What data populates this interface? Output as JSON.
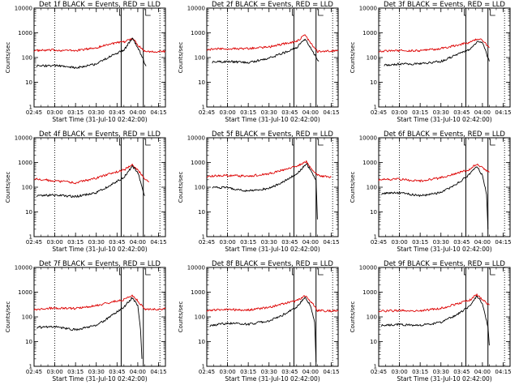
{
  "chart_data": {
    "type": "line",
    "layout": "3x3 grid",
    "x_ticklabels": [
      "02:45",
      "03:00",
      "03:15",
      "03:30",
      "03:45",
      "04:00",
      "04:15"
    ],
    "x_range": [
      "02:45",
      "04:20"
    ],
    "x_label": "Start Time (31-Jul-10 02:42:00)",
    "y_scale": "log",
    "y_range": [
      1,
      10000
    ],
    "y_ticklabels": [
      "1",
      "10",
      "100",
      "1000",
      "10000"
    ],
    "y_label": "Counts/sec",
    "series_colors": {
      "events": "#000000",
      "lld": "#dd0000"
    },
    "annotation_lines": [
      {
        "time": "03:00",
        "style": "dotted"
      },
      {
        "time": "03:48",
        "style": "solid"
      },
      {
        "time": "04:04",
        "style": "solid"
      },
      {
        "time": "04:16",
        "style": "dotted"
      }
    ],
    "panels": [
      {
        "title": "Det 1f BLACK = Events, RED = LLD",
        "series": [
          {
            "color": "red",
            "x": [
              "02:45",
              "03:00",
              "03:15",
              "03:30",
              "03:40",
              "03:50",
              "03:56",
              "04:00",
              "04:05",
              "04:20"
            ],
            "y": [
              190,
              200,
              190,
              250,
              360,
              420,
              620,
              330,
              180,
              175
            ]
          },
          {
            "color": "black",
            "x": [
              "02:47",
              "03:00",
              "03:15",
              "03:30",
              "03:40",
              "03:50",
              "03:56",
              "04:00",
              "04:06"
            ],
            "y": [
              45,
              48,
              38,
              55,
              110,
              200,
              600,
              260,
              45
            ]
          }
        ]
      },
      {
        "title": "Det 2f BLACK = Events, RED = LLD",
        "series": [
          {
            "color": "red",
            "x": [
              "02:45",
              "03:00",
              "03:15",
              "03:30",
              "03:40",
              "03:50",
              "03:56",
              "04:00",
              "04:05",
              "04:20"
            ],
            "y": [
              210,
              230,
              230,
              270,
              350,
              450,
              800,
              400,
              180,
              190
            ]
          },
          {
            "color": "black",
            "x": [
              "02:49",
              "03:00",
              "03:15",
              "03:30",
              "03:40",
              "03:50",
              "03:56",
              "04:00",
              "04:06"
            ],
            "y": [
              65,
              70,
              62,
              95,
              150,
              250,
              580,
              250,
              70
            ]
          }
        ]
      },
      {
        "title": "Det 3f BLACK = Events, RED = LLD",
        "series": [
          {
            "color": "red",
            "x": [
              "02:45",
              "03:00",
              "03:15",
              "03:30",
              "03:40",
              "03:50",
              "03:57",
              "04:00",
              "04:05"
            ],
            "y": [
              180,
              190,
              190,
              230,
              300,
              400,
              600,
              500,
              250
            ]
          },
          {
            "color": "black",
            "x": [
              "02:49",
              "03:00",
              "03:15",
              "03:30",
              "03:40",
              "03:50",
              "03:57",
              "04:00",
              "04:05"
            ],
            "y": [
              50,
              55,
              55,
              70,
              120,
              200,
              480,
              400,
              70
            ]
          }
        ]
      },
      {
        "title": "Det 4f BLACK = Events, RED = LLD",
        "series": [
          {
            "color": "red",
            "x": [
              "02:45",
              "03:00",
              "03:15",
              "03:30",
              "03:40",
              "03:50",
              "03:56",
              "04:00",
              "04:05",
              "04:08"
            ],
            "y": [
              220,
              180,
              150,
              230,
              360,
              500,
              800,
              500,
              220,
              160
            ]
          },
          {
            "color": "black",
            "x": [
              "02:47",
              "03:00",
              "03:15",
              "03:30",
              "03:40",
              "03:50",
              "03:56",
              "04:00",
              "04:05"
            ],
            "y": [
              45,
              48,
              42,
              60,
              120,
              250,
              700,
              400,
              45
            ]
          }
        ]
      },
      {
        "title": "Det 5f BLACK = Events, RED = LLD",
        "series": [
          {
            "color": "red",
            "x": [
              "02:45",
              "03:00",
              "03:15",
              "03:30",
              "03:40",
              "03:50",
              "03:57",
              "04:00",
              "04:05",
              "04:15"
            ],
            "y": [
              280,
              300,
              280,
              350,
              500,
              700,
              1100,
              600,
              300,
              260
            ]
          },
          {
            "color": "black",
            "x": [
              "02:49",
              "03:00",
              "03:15",
              "03:30",
              "03:40",
              "03:50",
              "03:57",
              "04:00",
              "04:02",
              "04:04",
              "04:05"
            ],
            "y": [
              100,
              95,
              70,
              90,
              160,
              350,
              900,
              500,
              300,
              200,
              5
            ]
          }
        ]
      },
      {
        "title": "Det 6f BLACK = Events, RED = LLD",
        "series": [
          {
            "color": "red",
            "x": [
              "02:45",
              "03:00",
              "03:15",
              "03:30",
              "03:40",
              "03:50",
              "03:56",
              "04:00",
              "04:05"
            ],
            "y": [
              200,
              210,
              180,
              240,
              350,
              500,
              900,
              600,
              400
            ]
          },
          {
            "color": "black",
            "x": [
              "02:47",
              "03:00",
              "03:15",
              "03:30",
              "03:40",
              "03:50",
              "03:56",
              "04:00",
              "04:03",
              "04:04"
            ],
            "y": [
              55,
              60,
              45,
              60,
              120,
              300,
              700,
              300,
              50,
              2
            ]
          }
        ]
      },
      {
        "title": "Det 7f BLACK = Events, RED = LLD",
        "series": [
          {
            "color": "red",
            "x": [
              "02:45",
              "03:00",
              "03:15",
              "03:30",
              "03:40",
              "03:50",
              "03:56",
              "04:00",
              "04:05",
              "04:20"
            ],
            "y": [
              200,
              230,
              220,
              280,
              380,
              500,
              750,
              450,
              200,
              210
            ]
          },
          {
            "color": "black",
            "x": [
              "02:47",
              "03:00",
              "03:15",
              "03:30",
              "03:40",
              "03:50",
              "03:56",
              "04:00",
              "04:02",
              "04:03"
            ],
            "y": [
              38,
              40,
              30,
              45,
              100,
              250,
              600,
              300,
              30,
              2
            ]
          }
        ]
      },
      {
        "title": "Det 8f BLACK = Events, RED = LLD",
        "series": [
          {
            "color": "red",
            "x": [
              "02:45",
              "03:00",
              "03:15",
              "03:30",
              "03:40",
              "03:50",
              "03:56",
              "04:00",
              "04:05",
              "04:20"
            ],
            "y": [
              180,
              200,
              190,
              240,
              340,
              450,
              700,
              450,
              180,
              170
            ]
          },
          {
            "color": "black",
            "x": [
              "02:47",
              "03:00",
              "03:15",
              "03:30",
              "03:40",
              "03:50",
              "03:56",
              "04:00",
              "04:03",
              "04:04"
            ],
            "y": [
              45,
              55,
              50,
              70,
              120,
              250,
              600,
              300,
              60,
              1.5
            ]
          }
        ]
      },
      {
        "title": "Det 9f BLACK = Events, RED = LLD",
        "series": [
          {
            "color": "red",
            "x": [
              "02:45",
              "03:00",
              "03:15",
              "03:30",
              "03:40",
              "03:50",
              "03:56",
              "04:00",
              "04:05"
            ],
            "y": [
              170,
              180,
              175,
              220,
              320,
              450,
              800,
              500,
              300
            ]
          },
          {
            "color": "black",
            "x": [
              "02:47",
              "03:00",
              "03:15",
              "03:30",
              "03:40",
              "03:50",
              "03:56",
              "04:00",
              "04:04",
              "04:05"
            ],
            "y": [
              45,
              50,
              45,
              60,
              110,
              250,
              700,
              350,
              40,
              7
            ]
          }
        ]
      }
    ]
  }
}
